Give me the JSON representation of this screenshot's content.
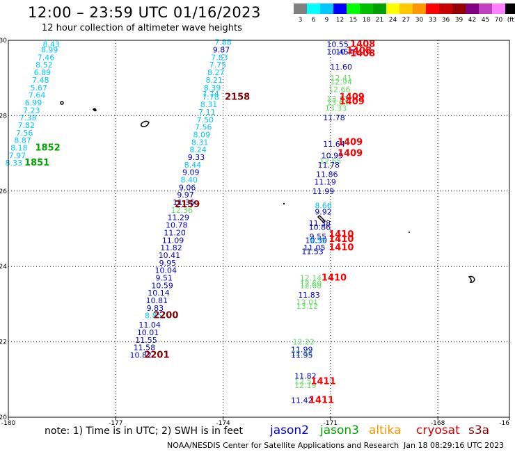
{
  "header": {
    "title": "12:00 – 23:59 UTC 01/16/2023",
    "subtitle": "12 hour collection of altimeter wave heights"
  },
  "colorbar": {
    "labels": [
      "3",
      "6",
      "9",
      "12",
      "15",
      "18",
      "21",
      "24",
      "27",
      "30",
      "33",
      "36",
      "39",
      "42",
      "45",
      "70",
      "(ft)"
    ],
    "colors": [
      "#808080",
      "#00ffff",
      "#00c8ff",
      "#0000ff",
      "#00ff00",
      "#00c000",
      "#00a000",
      "#ffff00",
      "#ffc800",
      "#ff9600",
      "#ff0000",
      "#c80000",
      "#960000",
      "#800080",
      "#c040c0",
      "#ff80ff",
      "#000000"
    ]
  },
  "footer": {
    "note": "note: 1) Time is in UTC; 2) SWH is in feet",
    "center": "NOAA/NESDIS Center for Satellite Applications and Research",
    "date": "Jan 18 08:29:16 UTC 2023"
  },
  "legend": [
    {
      "name": "jason2",
      "color": "#0000cc"
    },
    {
      "name": "jason3",
      "color": "#00a000"
    },
    {
      "name": "altika",
      "color": "#ff9600"
    },
    {
      "name": "cryosat",
      "color": "#cc0000"
    },
    {
      "name": "s3a",
      "color": "#800000"
    }
  ],
  "chart_data": {
    "type": "scatter",
    "xlim": [
      -180,
      -166
    ],
    "ylim": [
      20,
      30
    ],
    "grid": true,
    "x_ticks": [
      "-180",
      "-177",
      "-174",
      "-171",
      "-168",
      "-16"
    ],
    "y_ticks": [
      "20",
      "22",
      "24",
      "26",
      "28",
      "30"
    ],
    "points": [
      {
        "v": "8.43",
        "x": -178.8,
        "y": 29.9,
        "c": "#00c8ff"
      },
      {
        "v": "8.99",
        "x": -178.85,
        "y": 29.75,
        "c": "#00c8ff"
      },
      {
        "v": "7.46",
        "x": -178.95,
        "y": 29.55,
        "c": "#00c8ff"
      },
      {
        "v": "8.52",
        "x": -179.0,
        "y": 29.35,
        "c": "#00c8ff"
      },
      {
        "v": "6.89",
        "x": -179.05,
        "y": 29.15,
        "c": "#00c8ff"
      },
      {
        "v": "7.48",
        "x": -179.1,
        "y": 28.95,
        "c": "#00c8ff"
      },
      {
        "v": "5.67",
        "x": -179.15,
        "y": 28.75,
        "c": "#00c8ff"
      },
      {
        "v": "7.64",
        "x": -179.2,
        "y": 28.55,
        "c": "#00c8ff"
      },
      {
        "v": "6.99",
        "x": -179.3,
        "y": 28.35,
        "c": "#00c8ff"
      },
      {
        "v": "7.23",
        "x": -179.35,
        "y": 28.15,
        "c": "#00c8ff"
      },
      {
        "v": "7.38",
        "x": -179.45,
        "y": 27.95,
        "c": "#00c8ff"
      },
      {
        "v": "7.82",
        "x": -179.5,
        "y": 27.75,
        "c": "#00c8ff"
      },
      {
        "v": "7.56",
        "x": -179.55,
        "y": 27.55,
        "c": "#00c8ff"
      },
      {
        "v": "8.87",
        "x": -179.6,
        "y": 27.35,
        "c": "#00c8ff"
      },
      {
        "v": "8.18",
        "x": -179.7,
        "y": 27.15,
        "c": "#00c8ff"
      },
      {
        "v": "7.97",
        "x": -179.75,
        "y": 26.95,
        "c": "#00c8ff"
      },
      {
        "v": "8.33",
        "x": -179.85,
        "y": 26.75,
        "c": "#00c8ff"
      },
      {
        "v": "1852",
        "x": -178.9,
        "y": 27.15,
        "c": "#00a000",
        "label": true
      },
      {
        "v": "1851",
        "x": -179.2,
        "y": 26.75,
        "c": "#00a000",
        "label": true
      },
      {
        "v": "7.88",
        "x": -174.0,
        "y": 29.95,
        "c": "#00c8ff"
      },
      {
        "v": "9.87",
        "x": -174.05,
        "y": 29.75,
        "c": "#0000cc"
      },
      {
        "v": "7.83",
        "x": -174.1,
        "y": 29.55,
        "c": "#00c8ff"
      },
      {
        "v": "7.75",
        "x": -174.15,
        "y": 29.35,
        "c": "#00c8ff"
      },
      {
        "v": "8.27",
        "x": -174.2,
        "y": 29.15,
        "c": "#00c8ff"
      },
      {
        "v": "8.21",
        "x": -174.25,
        "y": 28.95,
        "c": "#00c8ff"
      },
      {
        "v": "8.39",
        "x": -174.3,
        "y": 28.75,
        "c": "#00c8ff"
      },
      {
        "v": "7.74",
        "x": -174.35,
        "y": 28.58,
        "c": "#00c8ff"
      },
      {
        "v": "7.78",
        "x": -174.35,
        "y": 28.5,
        "c": "#00c8ff"
      },
      {
        "v": "8.31",
        "x": -174.4,
        "y": 28.3,
        "c": "#00c8ff"
      },
      {
        "v": "7.11",
        "x": -174.45,
        "y": 28.1,
        "c": "#00c8ff"
      },
      {
        "v": "7.50",
        "x": -174.5,
        "y": 27.9,
        "c": "#00c8ff"
      },
      {
        "v": "7.56",
        "x": -174.55,
        "y": 27.7,
        "c": "#00c8ff"
      },
      {
        "v": "8.09",
        "x": -174.6,
        "y": 27.5,
        "c": "#00c8ff"
      },
      {
        "v": "8.31",
        "x": -174.65,
        "y": 27.3,
        "c": "#00c8ff"
      },
      {
        "v": "8.24",
        "x": -174.7,
        "y": 27.1,
        "c": "#00c8ff"
      },
      {
        "v": "9.33",
        "x": -174.75,
        "y": 26.9,
        "c": "#0000cc"
      },
      {
        "v": "8.44",
        "x": -174.85,
        "y": 26.7,
        "c": "#00c8ff"
      },
      {
        "v": "9.09",
        "x": -174.9,
        "y": 26.5,
        "c": "#0000cc"
      },
      {
        "v": "8.40",
        "x": -174.95,
        "y": 26.3,
        "c": "#00c8ff"
      },
      {
        "v": "9.06",
        "x": -175.0,
        "y": 26.1,
        "c": "#0000cc"
      },
      {
        "v": "9.97",
        "x": -175.05,
        "y": 25.9,
        "c": "#0000cc"
      },
      {
        "v": "11.35",
        "x": -175.1,
        "y": 25.7,
        "c": "#0000cc"
      },
      {
        "v": "12.36",
        "x": -175.15,
        "y": 25.5,
        "c": "#66dd66"
      },
      {
        "v": "11.29",
        "x": -175.25,
        "y": 25.3,
        "c": "#0000cc"
      },
      {
        "v": "10.78",
        "x": -175.3,
        "y": 25.1,
        "c": "#0000cc"
      },
      {
        "v": "11.20",
        "x": -175.35,
        "y": 24.9,
        "c": "#0000cc"
      },
      {
        "v": "11.09",
        "x": -175.4,
        "y": 24.7,
        "c": "#0000cc"
      },
      {
        "v": "11.82",
        "x": -175.45,
        "y": 24.5,
        "c": "#0000cc"
      },
      {
        "v": "10.41",
        "x": -175.5,
        "y": 24.3,
        "c": "#0000cc"
      },
      {
        "v": "9.95",
        "x": -175.55,
        "y": 24.1,
        "c": "#0000cc"
      },
      {
        "v": "10.04",
        "x": -175.6,
        "y": 23.9,
        "c": "#0000cc"
      },
      {
        "v": "9.51",
        "x": -175.65,
        "y": 23.7,
        "c": "#0000cc"
      },
      {
        "v": "10.59",
        "x": -175.7,
        "y": 23.5,
        "c": "#0000cc"
      },
      {
        "v": "10.14",
        "x": -175.8,
        "y": 23.3,
        "c": "#0000cc"
      },
      {
        "v": "10.81",
        "x": -175.85,
        "y": 23.1,
        "c": "#0000cc"
      },
      {
        "v": "9.83",
        "x": -175.9,
        "y": 22.9,
        "c": "#0000cc"
      },
      {
        "v": "8.85",
        "x": -175.95,
        "y": 22.7,
        "c": "#00c8ff"
      },
      {
        "v": "11.04",
        "x": -176.05,
        "y": 22.45,
        "c": "#0000cc"
      },
      {
        "v": "10.01",
        "x": -176.1,
        "y": 22.25,
        "c": "#0000cc"
      },
      {
        "v": "11.55",
        "x": -176.15,
        "y": 22.05,
        "c": "#0000cc"
      },
      {
        "v": "11.58",
        "x": -176.2,
        "y": 21.85,
        "c": "#0000cc"
      },
      {
        "v": "10.82",
        "x": -176.3,
        "y": 21.65,
        "c": "#0000cc"
      },
      {
        "v": "2158",
        "x": -173.6,
        "y": 28.5,
        "c": "#800000",
        "label": true
      },
      {
        "v": "2159",
        "x": -175.0,
        "y": 25.65,
        "c": "#800000",
        "label": true
      },
      {
        "v": "2200",
        "x": -175.6,
        "y": 22.7,
        "c": "#800000",
        "label": true
      },
      {
        "v": "2201",
        "x": -175.85,
        "y": 21.65,
        "c": "#800000",
        "label": true
      },
      {
        "v": "10.55",
        "x": -170.8,
        "y": 29.9,
        "c": "#0000cc"
      },
      {
        "v": "10.45",
        "x": -170.8,
        "y": 29.7,
        "c": "#0000cc"
      },
      {
        "v": "10.73",
        "x": -170.55,
        "y": 29.7,
        "c": "#0000cc"
      },
      {
        "v": "11.60",
        "x": -170.7,
        "y": 29.3,
        "c": "#0000cc"
      },
      {
        "v": "12.41",
        "x": -170.7,
        "y": 29.0,
        "c": "#66dd66"
      },
      {
        "v": "12.94",
        "x": -170.7,
        "y": 28.9,
        "c": "#66dd66"
      },
      {
        "v": "12.66",
        "x": -170.75,
        "y": 28.7,
        "c": "#66dd66"
      },
      {
        "v": "13.37",
        "x": -170.8,
        "y": 28.45,
        "c": "#66dd66"
      },
      {
        "v": "13.64",
        "x": -170.8,
        "y": 28.35,
        "c": "#66dd66"
      },
      {
        "v": "13.33",
        "x": -170.85,
        "y": 28.2,
        "c": "#66dd66"
      },
      {
        "v": "11.78",
        "x": -170.9,
        "y": 27.95,
        "c": "#0000cc"
      },
      {
        "v": "11.64",
        "x": -170.9,
        "y": 27.25,
        "c": "#0000cc"
      },
      {
        "v": "10.99",
        "x": -170.95,
        "y": 26.95,
        "c": "#0000cc"
      },
      {
        "v": "12.65",
        "x": -171.0,
        "y": 26.8,
        "c": "#66dd66"
      },
      {
        "v": "11.78",
        "x": -171.05,
        "y": 26.7,
        "c": "#0000cc"
      },
      {
        "v": "11.86",
        "x": -171.1,
        "y": 26.45,
        "c": "#0000cc"
      },
      {
        "v": "11.19",
        "x": -171.15,
        "y": 26.25,
        "c": "#0000cc"
      },
      {
        "v": "11.99",
        "x": -171.2,
        "y": 26.0,
        "c": "#0000cc"
      },
      {
        "v": "8.66",
        "x": -171.2,
        "y": 25.62,
        "c": "#00c8ff"
      },
      {
        "v": "9.92",
        "x": -171.2,
        "y": 25.45,
        "c": "#0000cc"
      },
      {
        "v": "11.38",
        "x": -171.3,
        "y": 25.15,
        "c": "#0000cc"
      },
      {
        "v": "10.86",
        "x": -171.3,
        "y": 25.05,
        "c": "#0000cc"
      },
      {
        "v": "9.55",
        "x": -171.35,
        "y": 24.8,
        "c": "#0000cc"
      },
      {
        "v": "10.30",
        "x": -171.4,
        "y": 24.7,
        "c": "#0000cc"
      },
      {
        "v": "9.55",
        "x": -171.35,
        "y": 24.7,
        "c": "#00c8ff"
      },
      {
        "v": "11.05",
        "x": -171.45,
        "y": 24.5,
        "c": "#0000cc"
      },
      {
        "v": "11.53",
        "x": -171.5,
        "y": 24.4,
        "c": "#0000cc"
      },
      {
        "v": "12.14",
        "x": -171.55,
        "y": 23.7,
        "c": "#66dd66"
      },
      {
        "v": "12.60",
        "x": -171.55,
        "y": 23.55,
        "c": "#66dd66"
      },
      {
        "v": "12.68",
        "x": -171.55,
        "y": 23.5,
        "c": "#66dd66"
      },
      {
        "v": "11.83",
        "x": -171.6,
        "y": 23.25,
        "c": "#0000cc"
      },
      {
        "v": "13.01",
        "x": -171.65,
        "y": 23.05,
        "c": "#66dd66"
      },
      {
        "v": "13.12",
        "x": -171.65,
        "y": 22.95,
        "c": "#66dd66"
      },
      {
        "v": "12.22",
        "x": -171.75,
        "y": 22.0,
        "c": "#66dd66"
      },
      {
        "v": "11.99",
        "x": -171.8,
        "y": 21.8,
        "c": "#0000cc"
      },
      {
        "v": "12.75",
        "x": -171.8,
        "y": 21.7,
        "c": "#66dd66"
      },
      {
        "v": "11.95",
        "x": -171.8,
        "y": 21.65,
        "c": "#0000cc"
      },
      {
        "v": "11.82",
        "x": -171.7,
        "y": 21.1,
        "c": "#0000cc"
      },
      {
        "v": "12.51",
        "x": -171.7,
        "y": 20.95,
        "c": "#66dd66"
      },
      {
        "v": "12.19",
        "x": -171.7,
        "y": 20.85,
        "c": "#66dd66"
      },
      {
        "v": "11.42",
        "x": -171.8,
        "y": 20.45,
        "c": "#0000cc"
      },
      {
        "v": "1408",
        "x": -170.1,
        "y": 29.9,
        "c": "#ff0000",
        "label": true
      },
      {
        "v": "1408",
        "x": -170.2,
        "y": 29.72,
        "c": "#ff0000",
        "label": true
      },
      {
        "v": "1408",
        "x": -170.1,
        "y": 29.65,
        "c": "#ff0000",
        "label": true
      },
      {
        "v": "1409",
        "x": -170.4,
        "y": 28.5,
        "c": "#ff0000",
        "label": true
      },
      {
        "v": "1409",
        "x": -170.4,
        "y": 28.38,
        "c": "#ff0000",
        "label": true
      },
      {
        "v": "1409",
        "x": -170.45,
        "y": 27.3,
        "c": "#ff0000",
        "label": true
      },
      {
        "v": "1409",
        "x": -170.45,
        "y": 27.0,
        "c": "#ff0000",
        "label": true
      },
      {
        "v": "1410",
        "x": -170.7,
        "y": 24.85,
        "c": "#ff0000",
        "label": true
      },
      {
        "v": "1410",
        "x": -170.7,
        "y": 24.72,
        "c": "#ff0000",
        "label": true
      },
      {
        "v": "1410",
        "x": -170.7,
        "y": 24.5,
        "c": "#ff0000",
        "label": true
      },
      {
        "v": "1410",
        "x": -170.9,
        "y": 23.7,
        "c": "#ff0000",
        "label": true
      },
      {
        "v": "1411",
        "x": -171.2,
        "y": 20.95,
        "c": "#ff0000",
        "label": true
      },
      {
        "v": "1411",
        "x": -171.25,
        "y": 20.45,
        "c": "#ff0000",
        "label": true
      }
    ]
  }
}
